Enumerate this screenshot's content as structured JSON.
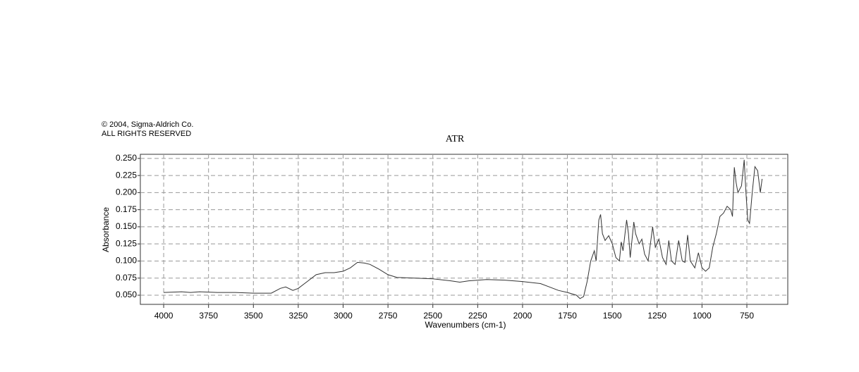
{
  "copyright": "© 2004, Sigma-Aldrich Co.",
  "rights": "ALL RIGHTS RESERVED",
  "chart_data": {
    "type": "line",
    "title": "ATR",
    "x_label": "Wavenumbers (cm-1)",
    "y_label": "Absorbance",
    "color": "#333333",
    "grid": true,
    "xlim": [
      4130,
      522
    ],
    "ylim": [
      0.0366,
      0.256
    ],
    "xticks": [
      4000,
      3750,
      3500,
      3250,
      3000,
      2750,
      2500,
      2250,
      2000,
      1750,
      1500,
      1250,
      1000,
      750
    ],
    "yticks": [
      {
        "value": 0.05,
        "label": "0.050"
      },
      {
        "value": 0.075,
        "label": "0.075"
      },
      {
        "value": 0.1,
        "label": "0.100"
      },
      {
        "value": 0.125,
        "label": "0.125"
      },
      {
        "value": 0.15,
        "label": "0.150"
      },
      {
        "value": 0.175,
        "label": "0.175"
      },
      {
        "value": 0.2,
        "label": "0.200"
      },
      {
        "value": 0.225,
        "label": "0.225"
      },
      {
        "value": 0.25,
        "label": "0.250"
      }
    ],
    "x": [
      4000,
      3900,
      3850,
      3800,
      3700,
      3600,
      3500,
      3400,
      3350,
      3320,
      3280,
      3250,
      3200,
      3150,
      3100,
      3050,
      3000,
      2960,
      2920,
      2880,
      2850,
      2800,
      2750,
      2700,
      2600,
      2500,
      2400,
      2350,
      2300,
      2200,
      2100,
      2000,
      1900,
      1850,
      1800,
      1750,
      1700,
      1680,
      1660,
      1640,
      1620,
      1600,
      1590,
      1575,
      1565,
      1555,
      1540,
      1520,
      1500,
      1480,
      1460,
      1450,
      1440,
      1420,
      1410,
      1400,
      1380,
      1370,
      1350,
      1335,
      1320,
      1300,
      1275,
      1260,
      1240,
      1220,
      1200,
      1185,
      1170,
      1150,
      1130,
      1110,
      1095,
      1080,
      1065,
      1040,
      1020,
      1000,
      980,
      960,
      940,
      920,
      900,
      880,
      860,
      840,
      830,
      820,
      810,
      800,
      780,
      765,
      755,
      745,
      735,
      720,
      705,
      690,
      675,
      665
    ],
    "values": [
      0.054,
      0.055,
      0.054,
      0.055,
      0.054,
      0.054,
      0.053,
      0.053,
      0.06,
      0.062,
      0.057,
      0.06,
      0.07,
      0.08,
      0.083,
      0.083,
      0.085,
      0.09,
      0.098,
      0.097,
      0.095,
      0.088,
      0.08,
      0.076,
      0.075,
      0.074,
      0.071,
      0.069,
      0.071,
      0.073,
      0.072,
      0.07,
      0.067,
      0.062,
      0.057,
      0.054,
      0.05,
      0.045,
      0.048,
      0.07,
      0.1,
      0.115,
      0.1,
      0.16,
      0.168,
      0.14,
      0.13,
      0.137,
      0.125,
      0.105,
      0.1,
      0.128,
      0.115,
      0.16,
      0.14,
      0.105,
      0.157,
      0.14,
      0.125,
      0.132,
      0.11,
      0.1,
      0.15,
      0.12,
      0.132,
      0.105,
      0.095,
      0.13,
      0.1,
      0.095,
      0.13,
      0.1,
      0.098,
      0.138,
      0.1,
      0.09,
      0.112,
      0.09,
      0.085,
      0.09,
      0.12,
      0.14,
      0.165,
      0.17,
      0.18,
      0.175,
      0.165,
      0.237,
      0.215,
      0.2,
      0.21,
      0.248,
      0.2,
      0.16,
      0.155,
      0.2,
      0.238,
      0.232,
      0.2,
      0.22
    ]
  }
}
